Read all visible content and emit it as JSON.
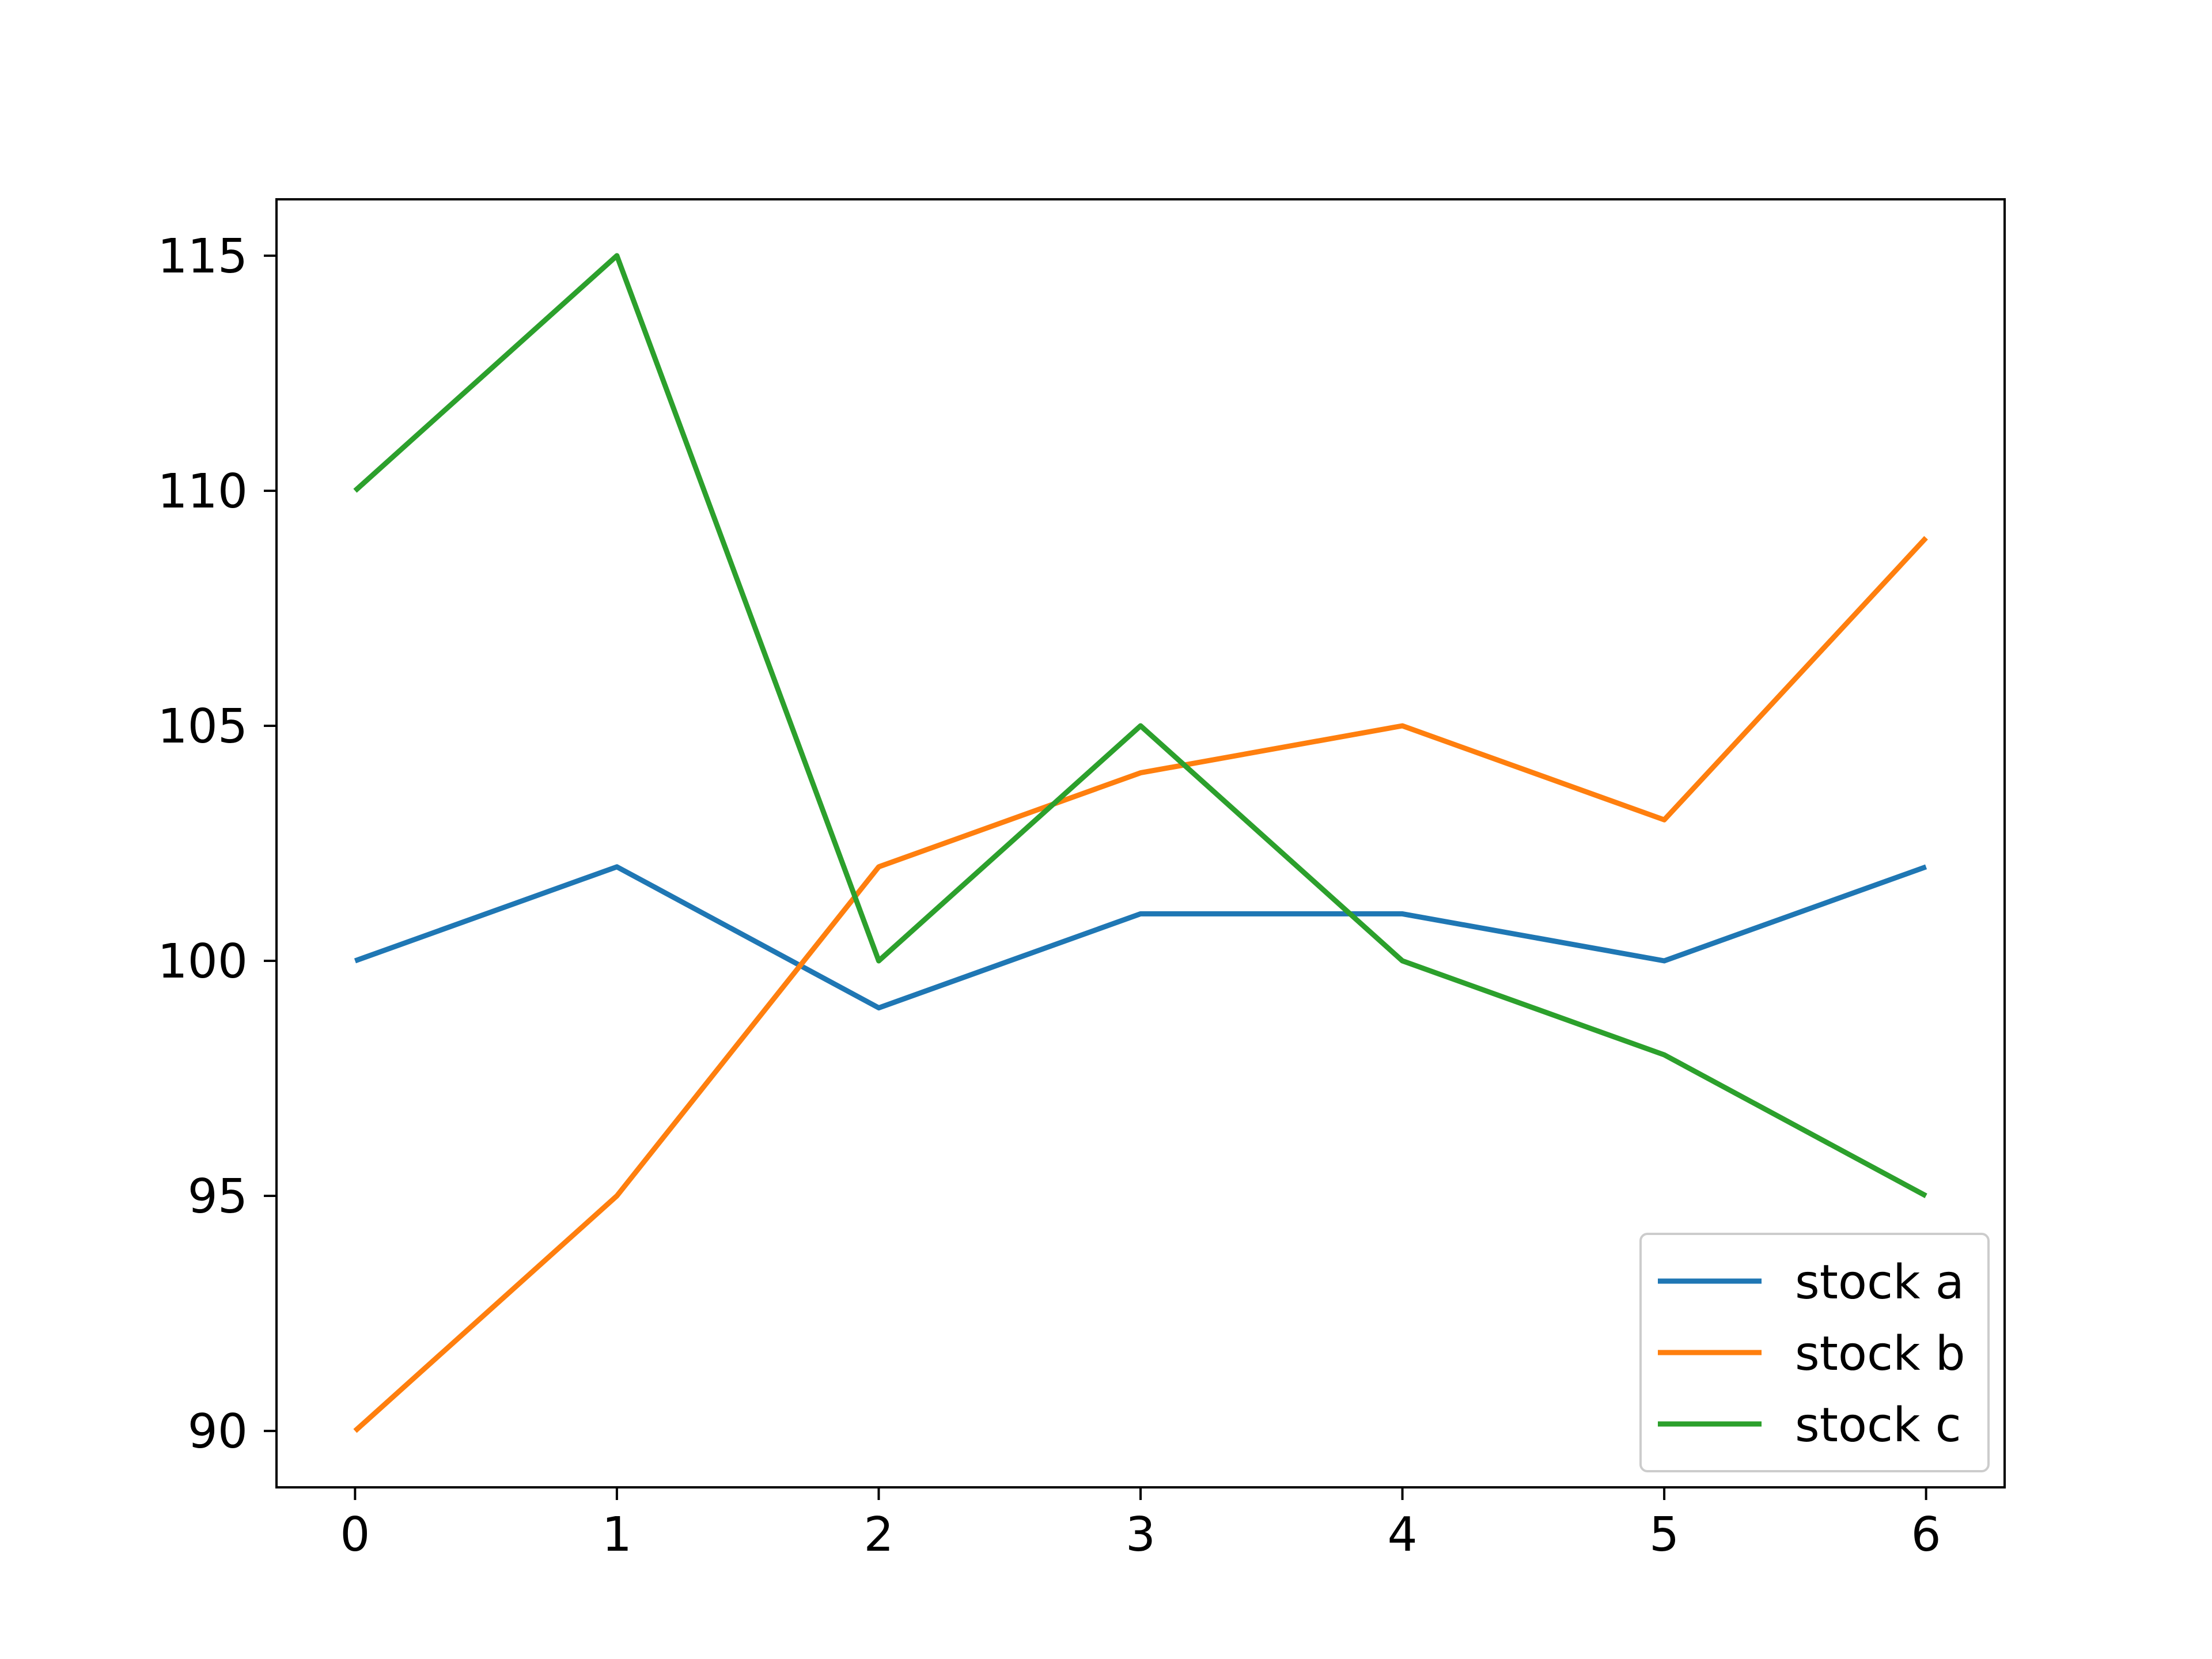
{
  "chart_data": {
    "type": "line",
    "title": "",
    "xlabel": "",
    "ylabel": "",
    "x": [
      0,
      1,
      2,
      3,
      4,
      5,
      6
    ],
    "xlim": [
      -0.3,
      6.3
    ],
    "ylim": [
      88.8,
      116.2
    ],
    "xticks": [
      0,
      1,
      2,
      3,
      4,
      5,
      6
    ],
    "xtick_labels": [
      "0",
      "1",
      "2",
      "3",
      "4",
      "5",
      "6"
    ],
    "yticks": [
      90,
      95,
      100,
      105,
      110,
      115
    ],
    "ytick_labels": [
      "90",
      "95",
      "100",
      "105",
      "110",
      "115"
    ],
    "grid": false,
    "legend_position": "lower right",
    "series": [
      {
        "name": "stock a",
        "color": "#1f77b4",
        "values": [
          100,
          102,
          99,
          101,
          101,
          100,
          102
        ]
      },
      {
        "name": "stock b",
        "color": "#ff7f0e",
        "values": [
          90,
          95,
          102,
          104,
          105,
          103,
          109
        ]
      },
      {
        "name": "stock c",
        "color": "#2ca02c",
        "values": [
          110,
          115,
          100,
          105,
          100,
          98,
          95
        ]
      }
    ]
  }
}
